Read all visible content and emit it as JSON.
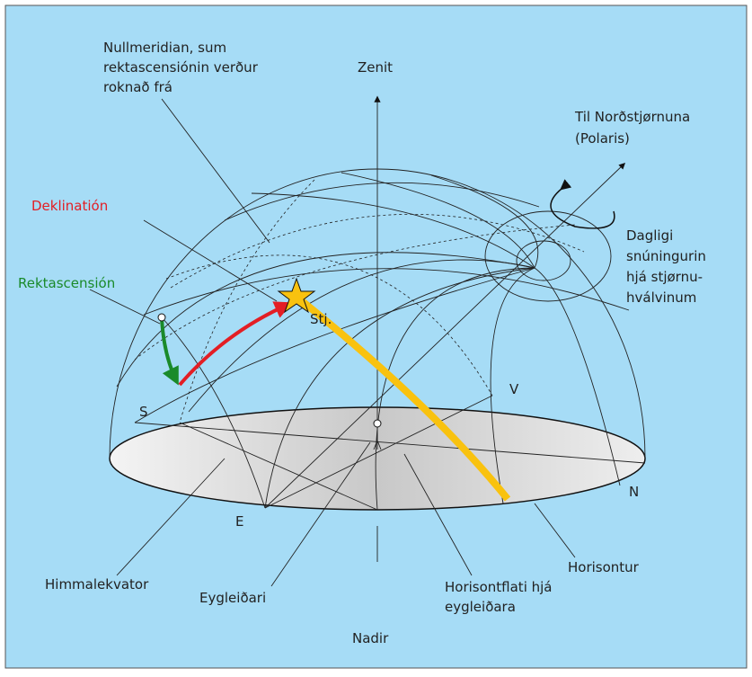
{
  "labels": {
    "nullmeridian": [
      "Nullmeridian, sum",
      "rektascensiónin verður",
      "roknað frá"
    ],
    "zenit": "Zenit",
    "polaris": [
      "Til Norðstjørnuna",
      "(Polaris)"
    ],
    "deklination": "Deklinatión",
    "rektascension": "Rektascensión",
    "rotation": [
      "Dagligi",
      "snúningurin",
      "hjá stjørnu-",
      "hválvinum"
    ],
    "star": "Stj.",
    "south": "S",
    "west": "V",
    "north": "N",
    "east": "E",
    "equator": "Himmalekvator",
    "observer": "Eygleiðari",
    "horizon_plane": [
      "Horisontflati hjá",
      "eygleiðara"
    ],
    "horizon": "Horisontur",
    "nadir": "Nadir"
  }
}
